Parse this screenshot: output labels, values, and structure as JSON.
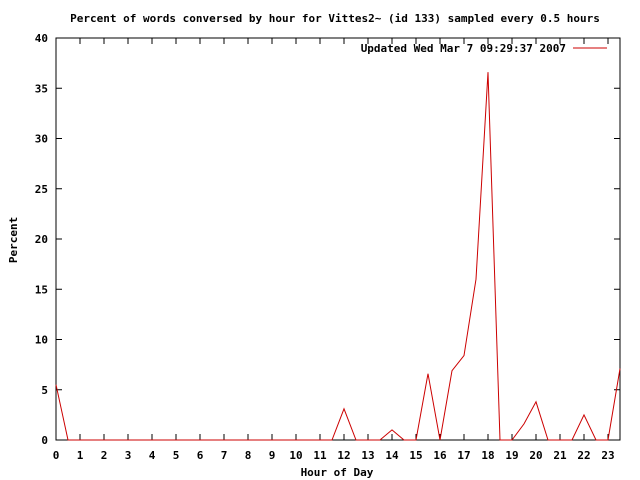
{
  "chart_data": {
    "type": "line",
    "title": "Percent of words conversed by hour for Vittes2~ (id 133) sampled every 0.5 hours",
    "xlabel": "Hour of Day",
    "ylabel": "Percent",
    "xlim": [
      0,
      23.5
    ],
    "ylim": [
      0,
      40
    ],
    "xticks": [
      0,
      1,
      2,
      3,
      4,
      5,
      6,
      7,
      8,
      9,
      10,
      11,
      12,
      13,
      14,
      15,
      16,
      17,
      18,
      19,
      20,
      21,
      22,
      23
    ],
    "yticks": [
      0,
      5,
      10,
      15,
      20,
      25,
      30,
      35,
      40
    ],
    "grid": false,
    "legend_position": "top-right",
    "series": [
      {
        "name": "Updated Wed Mar  7 09:29:37 2007",
        "color": "#cc0000",
        "x": [
          0,
          0.5,
          1,
          1.5,
          2,
          2.5,
          3,
          3.5,
          4,
          4.5,
          5,
          5.5,
          6,
          6.5,
          7,
          7.5,
          8,
          8.5,
          9,
          9.5,
          10,
          10.5,
          11,
          11.5,
          12,
          12.5,
          13,
          13.5,
          14,
          14.5,
          15,
          15.5,
          16,
          16.5,
          17,
          17.5,
          18,
          18.5,
          19,
          19.5,
          20,
          20.5,
          21,
          21.5,
          22,
          22.5,
          23,
          23.5
        ],
        "values": [
          5.5,
          0,
          0,
          0,
          0,
          0,
          0,
          0,
          0,
          0,
          0,
          0,
          0,
          0,
          0,
          0,
          0,
          0,
          0,
          0,
          0,
          0,
          0,
          0,
          3.1,
          0,
          0,
          0,
          1.0,
          0,
          0,
          6.6,
          0,
          6.9,
          8.4,
          16.0,
          36.6,
          0,
          0,
          1.6,
          3.8,
          0,
          0,
          0,
          2.5,
          0,
          0,
          7.1
        ]
      }
    ]
  }
}
